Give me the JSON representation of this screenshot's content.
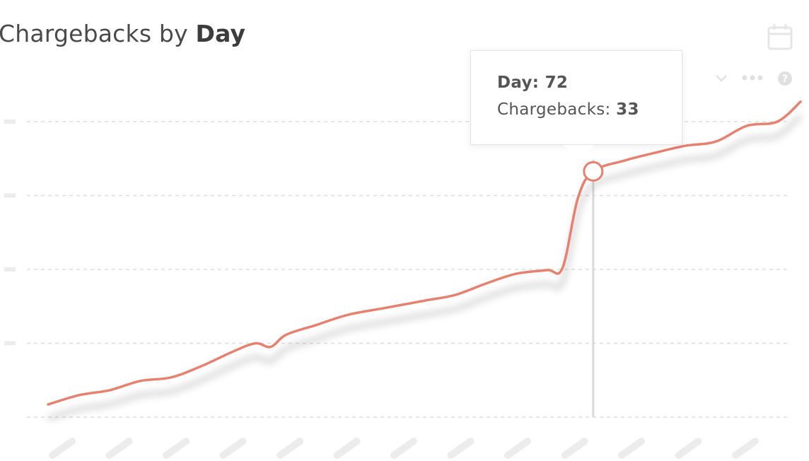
{
  "header": {
    "title_prefix": "Chargebacks by",
    "title_dimension": "Day"
  },
  "toolbar": {
    "calendar_icon": "calendar-icon",
    "chevron_icon": "chevron-down-icon",
    "more_icon": "more-dots-icon",
    "help_icon": "help-icon"
  },
  "tooltip": {
    "x_label": "Day:",
    "x_value": "72",
    "y_label": "Chargebacks:",
    "y_value": "33"
  },
  "colors": {
    "line": "#e8806f",
    "grid": "#dddddd",
    "crosshair": "#d9d9d9",
    "placeholder": "#ececec"
  },
  "chart_data": {
    "type": "line",
    "title": "Chargebacks by Day",
    "xlabel": "",
    "ylabel": "",
    "grid": true,
    "y_gridlines": 5,
    "ylim": [
      0,
      40
    ],
    "xlim": [
      1,
      99
    ],
    "series": [
      {
        "values": [
          [
            1,
            0.2
          ],
          [
            5,
            1.5
          ],
          [
            9,
            2.2
          ],
          [
            13,
            3.5
          ],
          [
            17,
            4.0
          ],
          [
            21,
            5.6
          ],
          [
            25,
            7.6
          ],
          [
            28,
            8.8
          ],
          [
            30,
            8.3
          ],
          [
            32,
            10.0
          ],
          [
            36,
            11.4
          ],
          [
            40,
            12.8
          ],
          [
            45,
            13.8
          ],
          [
            50,
            14.8
          ],
          [
            54,
            15.6
          ],
          [
            58,
            17.2
          ],
          [
            62,
            18.6
          ],
          [
            66,
            19.1
          ],
          [
            68,
            19.4
          ],
          [
            70,
            29.2
          ],
          [
            72,
            33.0
          ],
          [
            76,
            34.5
          ],
          [
            80,
            35.6
          ],
          [
            84,
            36.6
          ],
          [
            88,
            37.2
          ],
          [
            92,
            39.4
          ],
          [
            96,
            40.0
          ],
          [
            99,
            42.8
          ]
        ],
        "highlight": {
          "x": 72,
          "y": 33
        }
      }
    ]
  }
}
